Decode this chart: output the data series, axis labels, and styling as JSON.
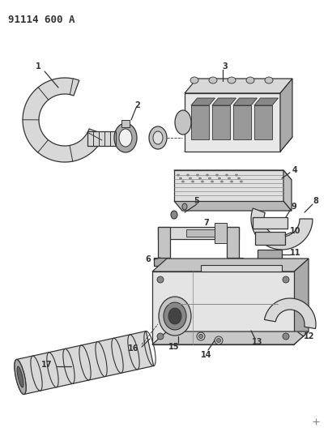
{
  "title": "91114 600 A",
  "bg_color": "#ffffff",
  "line_color": "#333333",
  "gray_fill": "#d8d8d8",
  "gray_dark": "#aaaaaa",
  "gray_med": "#c4c4c4"
}
